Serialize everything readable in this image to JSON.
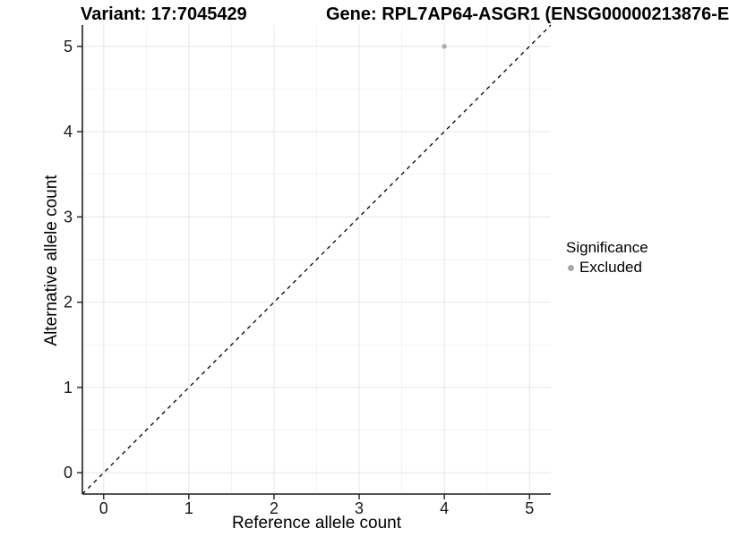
{
  "figure": {
    "title_left": "Variant: 17:7045429",
    "title_right": "Gene: RPL7AP64-ASGR1 (ENSG00000213876-E"
  },
  "legend": {
    "title": "Significance",
    "items": [
      {
        "label": "Excluded",
        "color": "#a8a8a8"
      }
    ]
  },
  "chart_data": {
    "type": "scatter",
    "titles": [
      "Variant: 17:7045429",
      "Gene: RPL7AP64-ASGR1 (ENSG00000213876-E"
    ],
    "xlabel": "Reference allele count",
    "ylabel": "Alternative allele count",
    "xlim": [
      -0.25,
      5.25
    ],
    "ylim": [
      -0.25,
      5.25
    ],
    "x_ticks": [
      0,
      1,
      2,
      3,
      4,
      5
    ],
    "y_ticks": [
      0,
      1,
      2,
      3,
      4,
      5
    ],
    "x_minor_ticks": [
      0.5,
      1.5,
      2.5,
      3.5,
      4.5
    ],
    "y_minor_ticks": [
      0.5,
      1.5,
      2.5,
      3.5,
      4.5
    ],
    "grid": "major+minor",
    "legend_position": "right",
    "series": [
      {
        "name": "Excluded",
        "color": "#a8a8a8",
        "points": [
          {
            "x": 4,
            "y": 5
          }
        ]
      }
    ],
    "reference_line": {
      "style": "dashed",
      "slope": 1,
      "intercept": 0,
      "color": "#000000"
    },
    "colors": {
      "background": "#ffffff",
      "grid_major": "#e6e6e6",
      "grid_minor": "#f2f2f2",
      "axis_line": "#1f1f1f",
      "tick_label": "#191919"
    }
  }
}
